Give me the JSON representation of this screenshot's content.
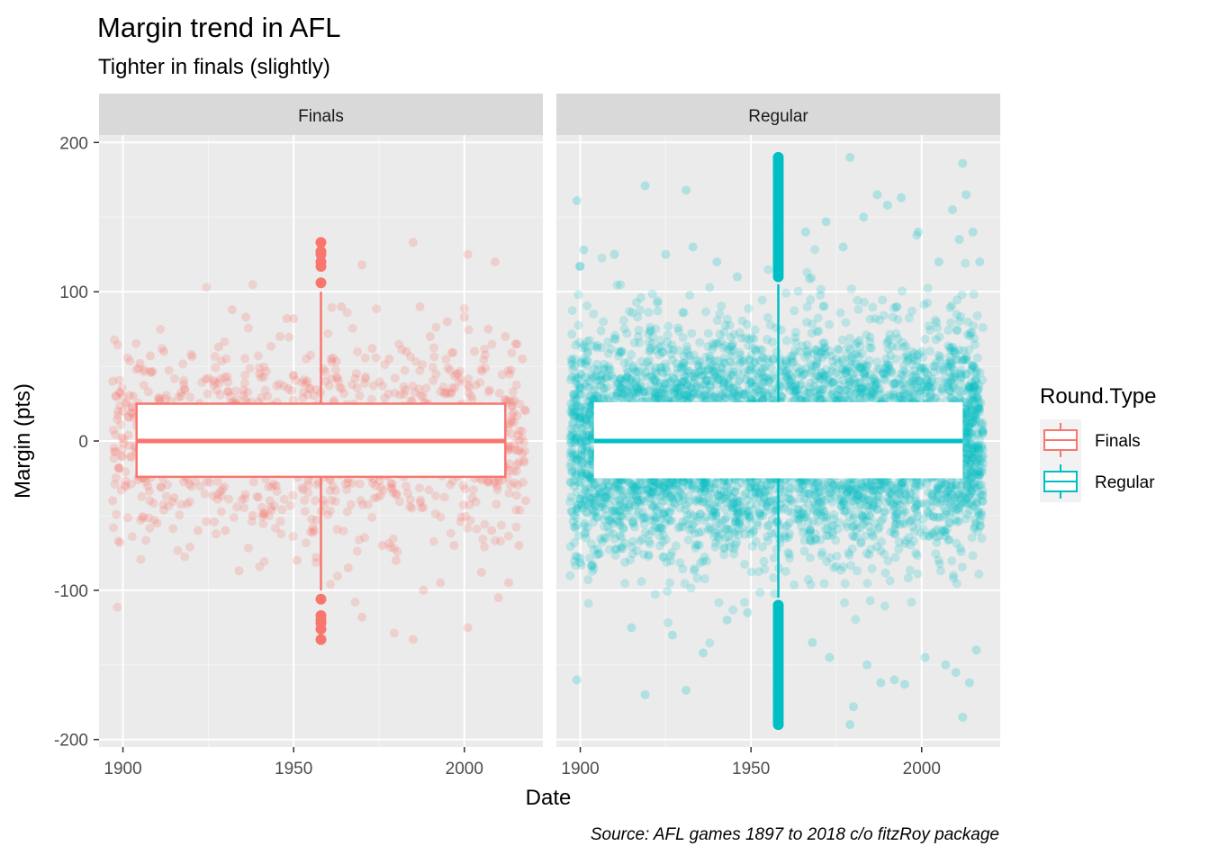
{
  "chart_data": {
    "type": "scatter",
    "title": "Margin trend in AFL",
    "subtitle": "Tighter in finals (slightly)",
    "xlabel": "Date",
    "ylabel": "Margin (pts)",
    "caption": "Source: AFL games 1897 to 2018 c/o fitzRoy package",
    "xlim": [
      1893,
      2023
    ],
    "ylim": [
      -205,
      205
    ],
    "x_ticks": [
      1900,
      1950,
      2000
    ],
    "y_ticks": [
      -200,
      -100,
      0,
      100,
      200
    ],
    "x_tick_labels": [
      "1900",
      "1950",
      "2000"
    ],
    "y_tick_labels": [
      "-200",
      "-100",
      "0",
      "100",
      "200"
    ],
    "grid": true,
    "legend": {
      "title": "Round.Type",
      "position": "right",
      "entries": [
        "Finals",
        "Regular"
      ]
    },
    "facets": [
      {
        "label": "Finals",
        "color": "#F8766D",
        "x_range": [
          1897,
          2018
        ],
        "boxplot": {
          "x_center": 1958,
          "x_span": [
            1904,
            2012
          ],
          "q1": -24,
          "median": 0,
          "q3": 25,
          "whisker_low": -100,
          "whisker_high": 100,
          "outliers": [
            133,
            127,
            125,
            120,
            117,
            106,
            -106,
            -117,
            -120,
            -122,
            -126,
            -133
          ]
        },
        "points": [
          {
            "x": 1897,
            "y": 40
          },
          {
            "x": 1897,
            "y": -40
          },
          {
            "x": 1900,
            "y": 20
          },
          {
            "x": 1903,
            "y": 30
          },
          {
            "x": 1905,
            "y": 52
          },
          {
            "x": 1908,
            "y": 57
          },
          {
            "x": 1910,
            "y": -55
          },
          {
            "x": 1912,
            "y": 60
          },
          {
            "x": 1915,
            "y": -38
          },
          {
            "x": 1918,
            "y": 35
          },
          {
            "x": 1920,
            "y": 58
          },
          {
            "x": 1922,
            "y": -60
          },
          {
            "x": 1925,
            "y": 42
          },
          {
            "x": 1928,
            "y": 63
          },
          {
            "x": 1930,
            "y": -60
          },
          {
            "x": 1932,
            "y": 88
          },
          {
            "x": 1934,
            "y": -87
          },
          {
            "x": 1936,
            "y": 83
          },
          {
            "x": 1938,
            "y": -50
          },
          {
            "x": 1940,
            "y": 45
          },
          {
            "x": 1943,
            "y": -40
          },
          {
            "x": 1946,
            "y": 70
          },
          {
            "x": 1948,
            "y": 82
          },
          {
            "x": 1950,
            "y": 82
          },
          {
            "x": 1951,
            "y": -80
          },
          {
            "x": 1954,
            "y": 40
          },
          {
            "x": 1956,
            "y": -60
          },
          {
            "x": 1961,
            "y": 55
          },
          {
            "x": 1964,
            "y": 90
          },
          {
            "x": 1966,
            "y": -85
          },
          {
            "x": 1970,
            "y": 118
          },
          {
            "x": 1970,
            "y": -118
          },
          {
            "x": 1973,
            "y": 62
          },
          {
            "x": 1976,
            "y": -70
          },
          {
            "x": 1978,
            "y": 55
          },
          {
            "x": 1980,
            "y": -80
          },
          {
            "x": 1983,
            "y": 60
          },
          {
            "x": 1985,
            "y": 133
          },
          {
            "x": 1985,
            "y": -133
          },
          {
            "x": 1987,
            "y": 90
          },
          {
            "x": 1988,
            "y": -100
          },
          {
            "x": 1990,
            "y": 70
          },
          {
            "x": 1993,
            "y": -95
          },
          {
            "x": 1995,
            "y": 80
          },
          {
            "x": 1997,
            "y": -70
          },
          {
            "x": 2000,
            "y": 83
          },
          {
            "x": 2001,
            "y": 125
          },
          {
            "x": 2001,
            "y": -125
          },
          {
            "x": 2003,
            "y": 60
          },
          {
            "x": 2005,
            "y": -88
          },
          {
            "x": 2007,
            "y": 75
          },
          {
            "x": 2008,
            "y": -60
          },
          {
            "x": 2009,
            "y": 120
          },
          {
            "x": 2010,
            "y": -105
          },
          {
            "x": 2012,
            "y": 70
          },
          {
            "x": 2013,
            "y": -95
          },
          {
            "x": 2015,
            "y": 65
          },
          {
            "x": 2016,
            "y": -70
          },
          {
            "x": 2017,
            "y": 55
          },
          {
            "x": 2018,
            "y": -40
          }
        ]
      },
      {
        "label": "Regular",
        "color": "#00BFC4",
        "x_range": [
          1897,
          2018
        ],
        "boxplot": {
          "x_center": 1958,
          "x_span": [
            1904,
            2012
          ],
          "q1": -25,
          "median": 0,
          "q3": 26,
          "whisker_low": -105,
          "whisker_high": 105,
          "outliers_range": [
            [
              110,
              190
            ],
            [
              -190,
              -110
            ]
          ]
        },
        "points": [
          {
            "x": 1899,
            "y": 161
          },
          {
            "x": 1899,
            "y": -160
          },
          {
            "x": 1900,
            "y": 117
          },
          {
            "x": 1901,
            "y": 128
          },
          {
            "x": 1910,
            "y": 125
          },
          {
            "x": 1915,
            "y": -125
          },
          {
            "x": 1919,
            "y": 171
          },
          {
            "x": 1919,
            "y": -170
          },
          {
            "x": 1925,
            "y": 125
          },
          {
            "x": 1927,
            "y": -130
          },
          {
            "x": 1931,
            "y": 168
          },
          {
            "x": 1931,
            "y": -167
          },
          {
            "x": 1933,
            "y": 130
          },
          {
            "x": 1936,
            "y": -142
          },
          {
            "x": 1940,
            "y": 120
          },
          {
            "x": 1943,
            "y": -120
          },
          {
            "x": 1946,
            "y": 110
          },
          {
            "x": 1949,
            "y": -115
          },
          {
            "x": 1966,
            "y": 140
          },
          {
            "x": 1968,
            "y": -135
          },
          {
            "x": 1972,
            "y": 147
          },
          {
            "x": 1973,
            "y": -145
          },
          {
            "x": 1977,
            "y": 130
          },
          {
            "x": 1979,
            "y": 190
          },
          {
            "x": 1979,
            "y": -190
          },
          {
            "x": 1980,
            "y": -178
          },
          {
            "x": 1983,
            "y": 150
          },
          {
            "x": 1984,
            "y": -150
          },
          {
            "x": 1987,
            "y": 165
          },
          {
            "x": 1988,
            "y": -162
          },
          {
            "x": 1990,
            "y": 158
          },
          {
            "x": 1992,
            "y": -160
          },
          {
            "x": 1994,
            "y": 163
          },
          {
            "x": 1995,
            "y": -163
          },
          {
            "x": 1999,
            "y": 140
          },
          {
            "x": 2001,
            "y": -145
          },
          {
            "x": 2005,
            "y": 120
          },
          {
            "x": 2007,
            "y": -150
          },
          {
            "x": 2009,
            "y": 155
          },
          {
            "x": 2010,
            "y": -155
          },
          {
            "x": 2011,
            "y": 135
          },
          {
            "x": 2012,
            "y": 186
          },
          {
            "x": 2012,
            "y": -185
          },
          {
            "x": 2013,
            "y": 165
          },
          {
            "x": 2014,
            "y": -162
          },
          {
            "x": 2015,
            "y": 140
          },
          {
            "x": 2016,
            "y": -140
          },
          {
            "x": 2017,
            "y": 120
          }
        ]
      }
    ]
  }
}
